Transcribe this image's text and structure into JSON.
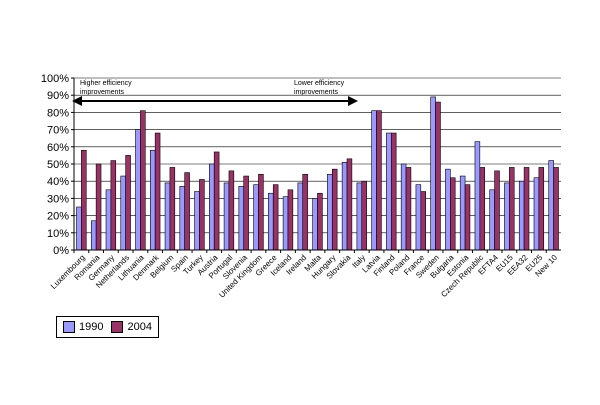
{
  "chart_data": {
    "type": "bar",
    "categories": [
      "Luxembourg",
      "Romania",
      "Germany",
      "Netherlands",
      "Lithuania",
      "Denmark",
      "Belgium",
      "Spain",
      "Turkey",
      "Austria",
      "Portugal",
      "Slovenia",
      "United Kingdom",
      "Greece",
      "Iceland",
      "Ireland",
      "Malta",
      "Hungary",
      "Slovakia",
      "Italy",
      "Latvia",
      "Finland",
      "Poland",
      "France",
      "Sweden",
      "Bulgaria",
      "Estonia",
      "Czech Republic",
      "EFTA4",
      "EU15",
      "EEA32",
      "EU25",
      "New 10"
    ],
    "series": [
      {
        "name": "1990",
        "color": "#9999ff",
        "values": [
          25,
          17,
          35,
          43,
          70,
          58,
          39,
          37,
          34,
          50,
          39,
          37,
          38,
          33,
          31,
          39,
          30,
          44,
          51,
          39,
          81,
          68,
          50,
          38,
          89,
          47,
          43,
          63,
          35,
          39,
          40,
          42,
          52
        ]
      },
      {
        "name": "2004",
        "color": "#993366",
        "values": [
          58,
          50,
          52,
          55,
          81,
          68,
          48,
          45,
          41,
          57,
          46,
          43,
          44,
          38,
          35,
          44,
          33,
          47,
          53,
          40,
          81,
          68,
          48,
          34,
          86,
          42,
          38,
          48,
          46,
          48,
          48,
          48,
          48
        ]
      }
    ],
    "ylim": [
      0,
      100
    ],
    "yticks": [
      "0%",
      "10%",
      "20%",
      "30%",
      "40%",
      "50%",
      "60%",
      "70%",
      "80%",
      "90%",
      "100%"
    ],
    "grid": true,
    "legend_position": "bottom-left",
    "xlabel": "",
    "ylabel": "",
    "annotations": {
      "left": "Higher efficiency improvements",
      "left_line1": "Higher efficiency",
      "left_line2": "improvements",
      "right_line1": "Lower efficiency",
      "right_line2": "improvements"
    }
  }
}
